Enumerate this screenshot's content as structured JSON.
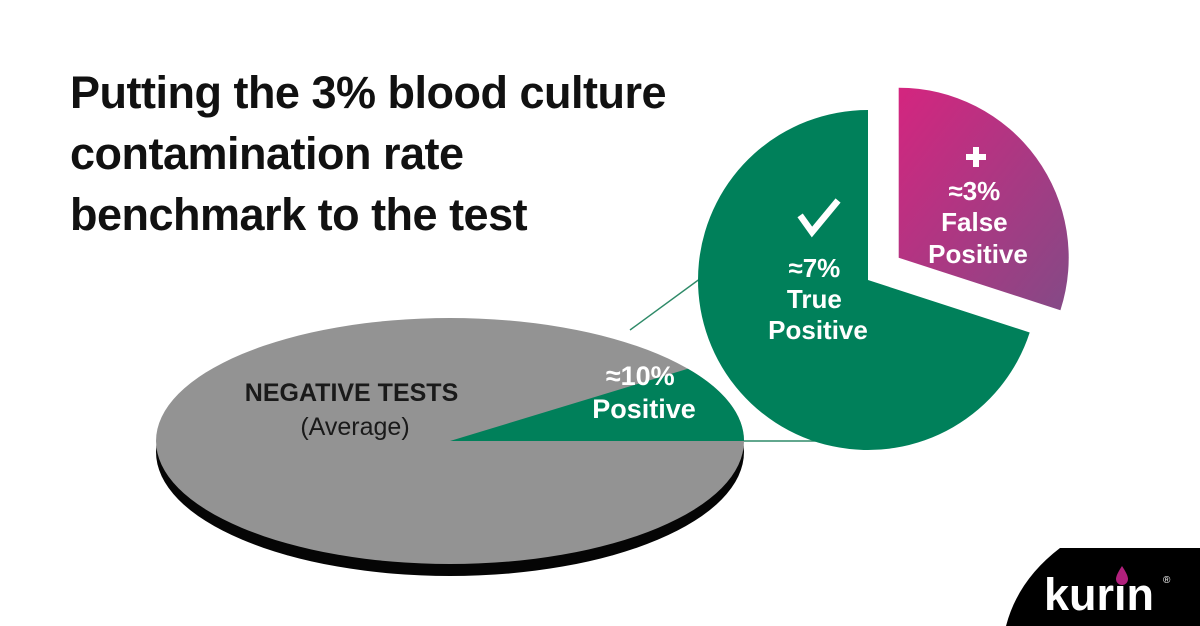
{
  "title_lines": [
    "Putting the 3% blood culture",
    "contamination rate",
    "benchmark to the test"
  ],
  "colors": {
    "negative": "#939393",
    "negative_shadow": "#050505",
    "positive": "#00805a",
    "false_positive_start": "#d4257f",
    "false_positive_end": "#844a86",
    "connector": "#2e8a68",
    "title": "#111111",
    "logo_bg": "#000000",
    "logo_drop": "#b1207c"
  },
  "icons": {
    "true_positive": "checkmark-icon",
    "false_positive": "plus-icon"
  },
  "logo": {
    "text": "kurin",
    "mark": "®"
  },
  "chart_data": [
    {
      "type": "pie",
      "name_label": [
        "NEGATIVE TESTS",
        "(Average)"
      ],
      "slices": [
        {
          "label": "NEGATIVE TESTS (Average)",
          "value": 90,
          "approximate": true
        },
        {
          "label_lines": [
            "≈10%",
            "Positive"
          ],
          "value": 10,
          "approximate": true
        }
      ]
    },
    {
      "type": "pie",
      "slices": [
        {
          "label_lines": [
            "≈7%",
            "True",
            "Positive"
          ],
          "value": 7,
          "approximate": true
        },
        {
          "label_lines": [
            "≈3%",
            "False",
            "Positive"
          ],
          "value": 3,
          "approximate": true
        }
      ]
    }
  ]
}
